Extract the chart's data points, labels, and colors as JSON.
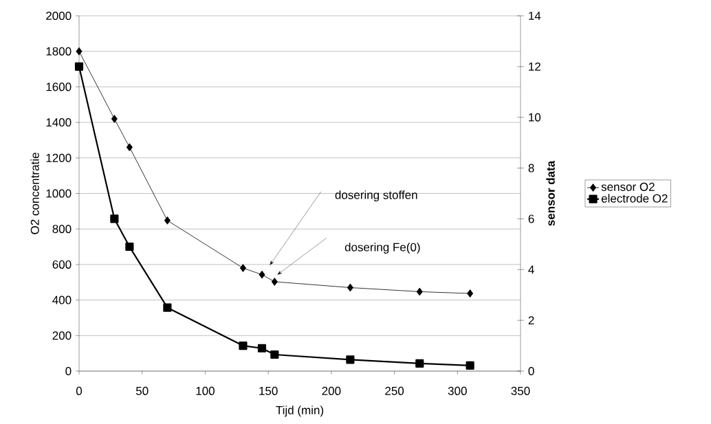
{
  "chart_data": {
    "type": "line",
    "xlabel": "Tijd (min)",
    "ylabel": "O2 concentratie",
    "y2label": "sensor data",
    "xlim": [
      0,
      350
    ],
    "xticks": [
      0,
      50,
      100,
      150,
      200,
      250,
      300,
      350
    ],
    "ylim": [
      0,
      2000
    ],
    "yticks": [
      0,
      200,
      400,
      600,
      800,
      1000,
      1200,
      1400,
      1600,
      1800,
      2000
    ],
    "y2lim": [
      0,
      14
    ],
    "y2ticks": [
      0,
      2,
      4,
      6,
      8,
      10,
      12,
      14
    ],
    "grid": "y",
    "legend": "right",
    "series": [
      {
        "name": "sensor O2",
        "color": "#000000",
        "marker": "diamond",
        "x": [
          0,
          28,
          40,
          70,
          130,
          145,
          155,
          215,
          270,
          310
        ],
        "values": [
          1800,
          1420,
          1260,
          848,
          580,
          543,
          503,
          470,
          447,
          437
        ]
      },
      {
        "name": "electrode O2",
        "color": "#000000",
        "marker": "square",
        "axis": "y2",
        "x": [
          0,
          28,
          40,
          70,
          130,
          145,
          155,
          215,
          270,
          310
        ],
        "values": [
          12.0,
          6.0,
          4.9,
          2.5,
          1.0,
          0.9,
          0.65,
          0.45,
          0.3,
          0.22
        ]
      }
    ],
    "annotations": [
      "dosering stoffen",
      "dosering Fe(0)"
    ]
  }
}
